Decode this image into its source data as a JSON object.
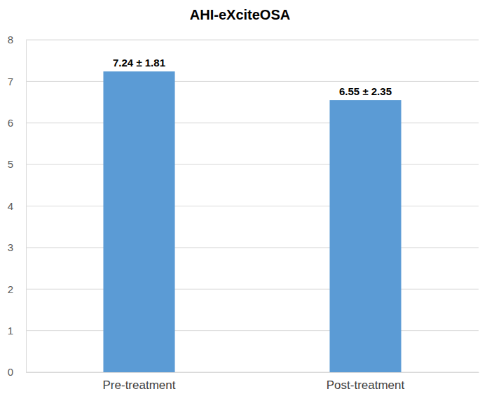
{
  "chart_data": {
    "type": "bar",
    "title": "AHI-eXciteOSA",
    "categories": [
      "Pre-treatment",
      "Post-treatment"
    ],
    "values": [
      7.24,
      6.55
    ],
    "value_labels": [
      "7.24 ± 1.81",
      "6.55 ± 2.35"
    ],
    "data_labels": true,
    "color": "#5b9bd5",
    "ylim": [
      0,
      8
    ],
    "yticks": [
      0,
      1,
      2,
      3,
      4,
      5,
      6,
      7,
      8
    ],
    "grid": true
  }
}
